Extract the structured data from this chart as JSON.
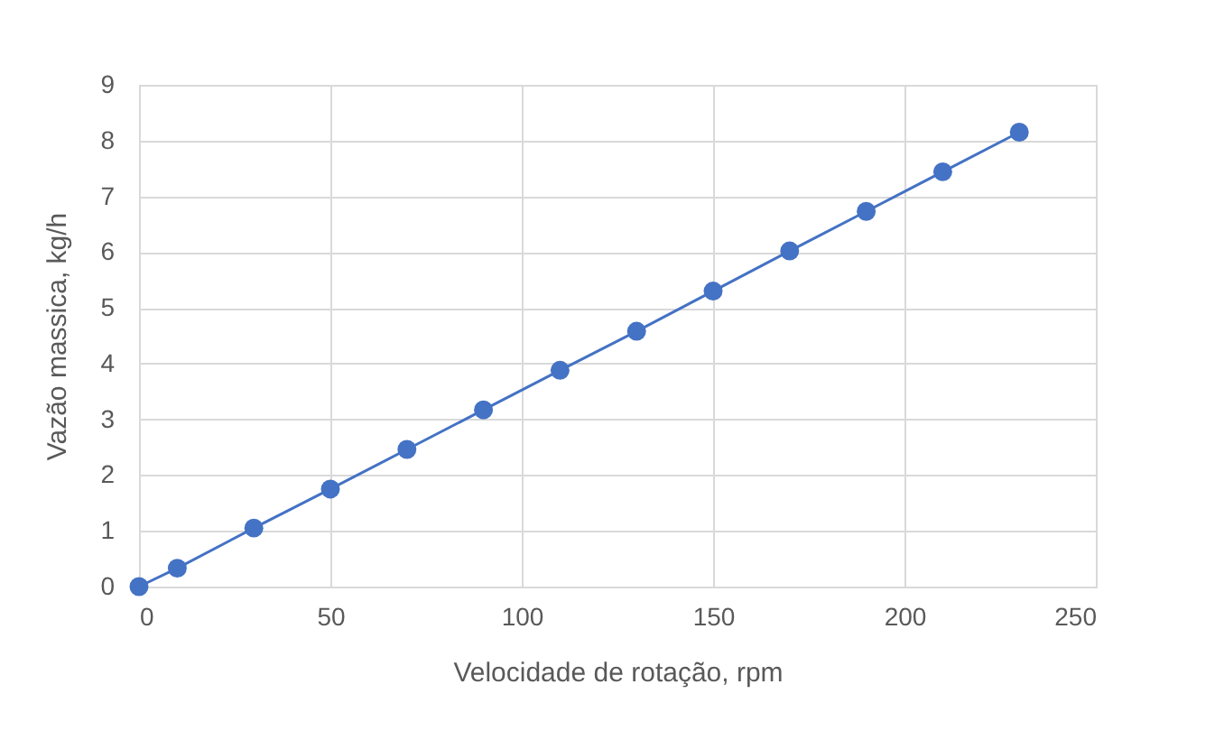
{
  "chart_data": {
    "type": "line",
    "xlabel": "Velocidade de rotação, rpm",
    "ylabel": "Vazão massica, kg/h",
    "x": [
      0,
      10,
      30,
      50,
      70,
      90,
      110,
      130,
      150,
      170,
      190,
      210,
      230
    ],
    "series": [
      {
        "color": "#4472c4",
        "values": [
          0,
          0.33,
          1.05,
          1.75,
          2.46,
          3.17,
          3.88,
          4.58,
          5.3,
          6.02,
          6.73,
          7.44,
          8.15
        ]
      }
    ],
    "xlim": [
      0,
      250
    ],
    "xticks": [
      0,
      50,
      100,
      150,
      200,
      250
    ],
    "ylim": [
      0,
      9
    ],
    "yticks": [
      0,
      1,
      2,
      3,
      4,
      5,
      6,
      7,
      8,
      9
    ],
    "grid": true,
    "marker": "circle",
    "line_style": "solid"
  }
}
